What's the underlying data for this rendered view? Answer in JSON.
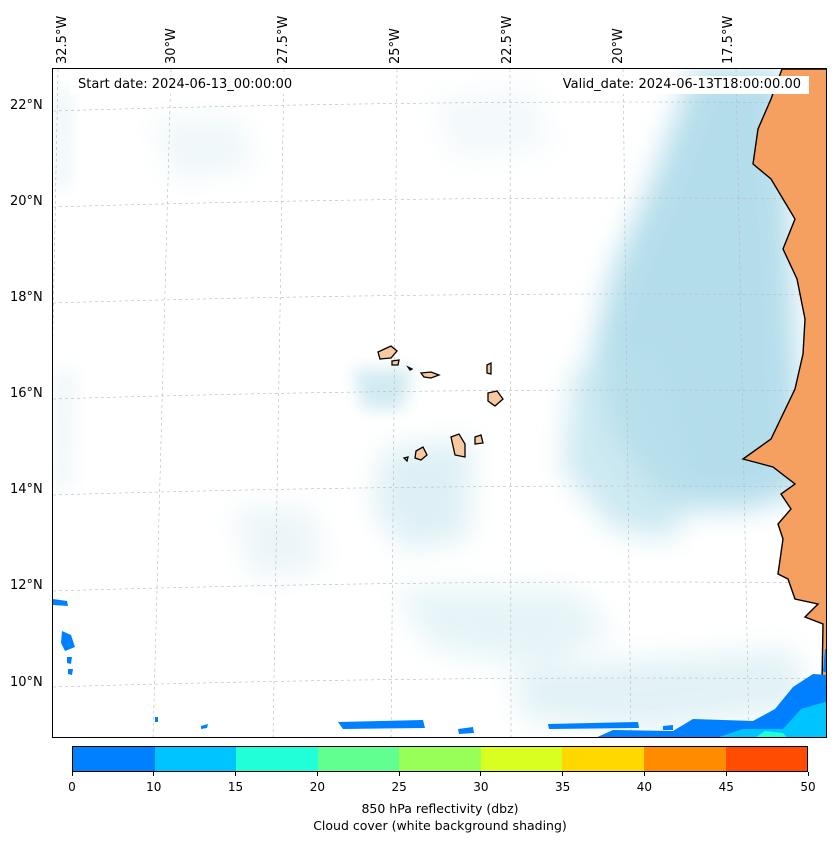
{
  "map": {
    "start_date": "Start date: 2024-06-13_00:00:00",
    "valid_date": "Valid_date: 2024-06-13T18:00:00.00",
    "lon_labels": [
      "32.5°W",
      "30°W",
      "27.5°W",
      "25°W",
      "22.5°W",
      "20°W",
      "17.5°W"
    ],
    "lat_labels": [
      "22°N",
      "20°N",
      "18°N",
      "16°N",
      "14°N",
      "12°N",
      "10°N"
    ],
    "extent": {
      "lon_min": -32.6,
      "lon_max": -15.5,
      "lat_min": 8.9,
      "lat_max": 22.8
    },
    "gridlines": "dashed",
    "features": [
      "coastline",
      "land",
      "cape-verde-islands",
      "reflectivity-echoes",
      "cloud-shading"
    ]
  },
  "colorbar": {
    "ticks": [
      "0",
      "10",
      "15",
      "20",
      "25",
      "30",
      "35",
      "40",
      "45",
      "50"
    ],
    "colors": [
      "#0080ff",
      "#00c4ff",
      "#20ffd8",
      "#60ff90",
      "#98ff58",
      "#d8ff20",
      "#ffd800",
      "#ff8c00",
      "#ff4c00"
    ],
    "label_line1": "850 hPa reflectivity (dbz)",
    "label_line2": "Cloud cover (white background shading)"
  },
  "colors": {
    "land": "#f5a060",
    "island": "#f8c8a0",
    "cloud": "#a8d8e8",
    "echo_blue": "#0080ff",
    "echo_cyan": "#00c4ff"
  }
}
